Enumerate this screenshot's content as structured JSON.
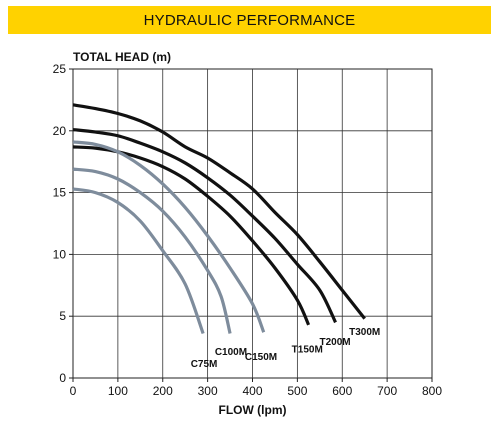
{
  "banner": {
    "title": "HYDRAULIC PERFORMANCE",
    "color": "#ffd200"
  },
  "chart_data": {
    "type": "line",
    "title": "",
    "ylabel": "TOTAL HEAD (m)",
    "xlabel": "FLOW (lpm)",
    "xlim": [
      0,
      800
    ],
    "ylim": [
      0,
      25
    ],
    "xticks": [
      0,
      100,
      200,
      300,
      400,
      500,
      600,
      700,
      800
    ],
    "yticks": [
      0,
      5,
      10,
      15,
      20,
      25
    ],
    "grid": true,
    "series": [
      {
        "name": "T300M",
        "color": "#111111",
        "label_at": [
          650,
          3.8
        ],
        "points": [
          [
            0,
            22.1
          ],
          [
            50,
            21.8
          ],
          [
            100,
            21.4
          ],
          [
            150,
            20.8
          ],
          [
            200,
            19.9
          ],
          [
            250,
            18.7
          ],
          [
            300,
            17.8
          ],
          [
            350,
            16.6
          ],
          [
            400,
            15.3
          ],
          [
            450,
            13.4
          ],
          [
            500,
            11.6
          ],
          [
            550,
            9.4
          ],
          [
            600,
            7.1
          ],
          [
            650,
            4.8
          ]
        ]
      },
      {
        "name": "T200M",
        "color": "#111111",
        "label_at": [
          584,
          3.0
        ],
        "points": [
          [
            0,
            20.1
          ],
          [
            50,
            19.9
          ],
          [
            100,
            19.6
          ],
          [
            150,
            19.0
          ],
          [
            200,
            18.3
          ],
          [
            250,
            17.4
          ],
          [
            300,
            16.2
          ],
          [
            350,
            14.8
          ],
          [
            400,
            13.1
          ],
          [
            450,
            11.3
          ],
          [
            500,
            9.2
          ],
          [
            550,
            7.1
          ],
          [
            585,
            4.5
          ]
        ]
      },
      {
        "name": "T150M",
        "color": "#111111",
        "label_at": [
          522,
          2.4
        ],
        "points": [
          [
            0,
            18.7
          ],
          [
            50,
            18.6
          ],
          [
            100,
            18.3
          ],
          [
            150,
            17.8
          ],
          [
            200,
            17.1
          ],
          [
            250,
            16.1
          ],
          [
            300,
            14.7
          ],
          [
            350,
            13.1
          ],
          [
            400,
            11.1
          ],
          [
            450,
            8.9
          ],
          [
            500,
            6.3
          ],
          [
            525,
            4.3
          ]
        ]
      },
      {
        "name": "C150M",
        "color": "#7e8c9c",
        "label_at": [
          419,
          1.8
        ],
        "points": [
          [
            0,
            19.1
          ],
          [
            50,
            18.9
          ],
          [
            100,
            18.3
          ],
          [
            150,
            17.2
          ],
          [
            200,
            15.7
          ],
          [
            250,
            13.8
          ],
          [
            300,
            11.5
          ],
          [
            350,
            8.9
          ],
          [
            400,
            6.0
          ],
          [
            425,
            3.7
          ]
        ]
      },
      {
        "name": "C100M",
        "color": "#7e8c9c",
        "label_at": [
          352,
          2.2
        ],
        "points": [
          [
            0,
            16.9
          ],
          [
            50,
            16.7
          ],
          [
            100,
            16.1
          ],
          [
            150,
            15.0
          ],
          [
            200,
            13.5
          ],
          [
            250,
            11.4
          ],
          [
            300,
            8.7
          ],
          [
            330,
            6.6
          ],
          [
            350,
            3.6
          ]
        ]
      },
      {
        "name": "C75M",
        "color": "#7e8c9c",
        "label_at": [
          292,
          1.2
        ],
        "points": [
          [
            0,
            15.3
          ],
          [
            50,
            15.0
          ],
          [
            100,
            14.2
          ],
          [
            150,
            12.7
          ],
          [
            200,
            10.3
          ],
          [
            250,
            7.6
          ],
          [
            290,
            3.6
          ]
        ]
      }
    ]
  }
}
